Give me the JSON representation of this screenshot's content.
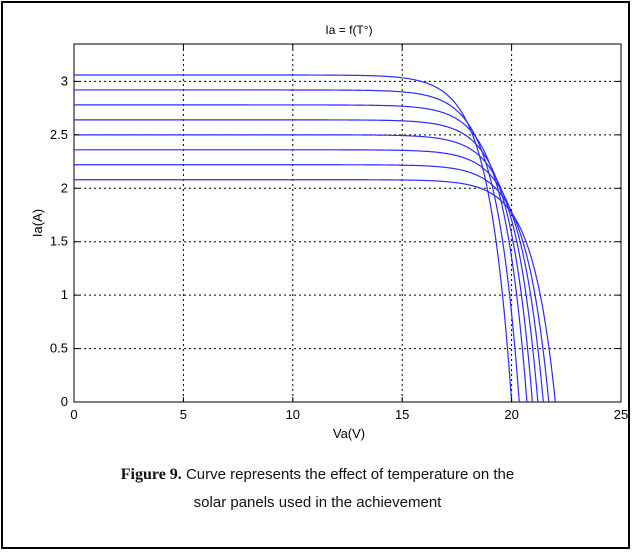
{
  "chart_data": {
    "type": "line",
    "title": "Ia = f(T°)",
    "xlabel": "Va(V)",
    "ylabel": "Ia(A)",
    "xlim": [
      0,
      25
    ],
    "ylim": [
      0,
      3.35
    ],
    "xticks": [
      "0",
      "5",
      "10",
      "15",
      "20",
      "25"
    ],
    "yticks": [
      "0",
      "0.5",
      "1",
      "1.5",
      "2",
      "2.5",
      "3"
    ],
    "grid": true,
    "line_color": "#2b2bff",
    "series": [
      {
        "isc": 2.08,
        "voc": 22.0
      },
      {
        "isc": 2.22,
        "voc": 21.7
      },
      {
        "isc": 2.36,
        "voc": 21.45
      },
      {
        "isc": 2.5,
        "voc": 21.2
      },
      {
        "isc": 2.64,
        "voc": 20.95
      },
      {
        "isc": 2.78,
        "voc": 20.7
      },
      {
        "isc": 2.92,
        "voc": 20.35
      },
      {
        "isc": 3.06,
        "voc": 20.0
      }
    ]
  },
  "caption": {
    "lead": "Figure 9.",
    "line1": "Curve represents the effect of temperature on the",
    "line2": "solar panels used in the achievement"
  }
}
